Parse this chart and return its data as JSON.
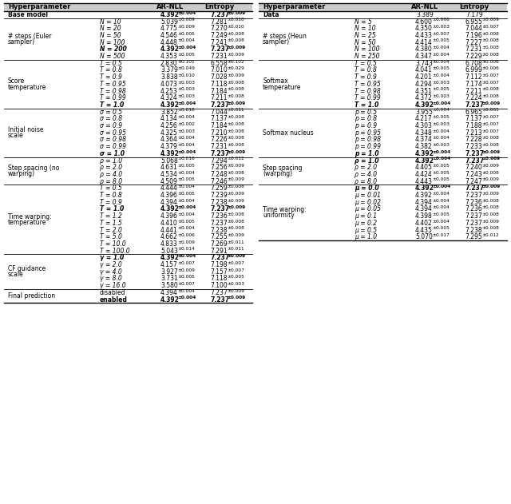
{
  "fig_width": 6.4,
  "fig_height": 6.31,
  "bg_color": "#ffffff",
  "header_bg": "#cccccc",
  "line_color": "#000000",
  "text_color": "#000000",
  "left_sections": [
    {
      "label": [
        "Base model"
      ],
      "label_bold": true,
      "rows": [
        {
          "param": "",
          "param_style": "normal",
          "ar": "4.392",
          "ar_err": "0.004",
          "ent": "7.237",
          "ent_err": "0.009",
          "bold": true
        }
      ]
    },
    {
      "label": [
        "# steps (Euler",
        "sampler)"
      ],
      "label_bold": false,
      "rows": [
        {
          "param": "N = 10",
          "param_style": "italic",
          "ar": "5.039",
          "ar_err": "0.009",
          "ent": "7.281",
          "ent_err": "0.010",
          "bold": false
        },
        {
          "param": "N = 20",
          "param_style": "italic",
          "ar": "4.775",
          "ar_err": "0.009",
          "ent": "7.270",
          "ent_err": "0.010",
          "bold": false
        },
        {
          "param": "N = 50",
          "param_style": "italic",
          "ar": "4.546",
          "ar_err": "0.005",
          "ent": "7.249",
          "ent_err": "0.008",
          "bold": false
        },
        {
          "param": "N = 100",
          "param_style": "italic",
          "ar": "4.448",
          "ar_err": "0.004",
          "ent": "7.241",
          "ent_err": "0.008",
          "bold": false
        },
        {
          "param": "N = 200",
          "param_style": "italic",
          "ar": "4.392",
          "ar_err": "0.004",
          "ent": "7.237",
          "ent_err": "0.009",
          "bold": true
        },
        {
          "param": "N = 500",
          "param_style": "italic",
          "ar": "4.353",
          "ar_err": "0.005",
          "ent": "7.231",
          "ent_err": "0.009",
          "bold": false
        }
      ]
    },
    {
      "label": [
        "Score",
        "temperature"
      ],
      "label_bold": false,
      "rows": [
        {
          "param": "T = 0.5",
          "param_style": "italic",
          "ar": "2.830",
          "ar_err": "0.101",
          "ent": "6.558",
          "ent_err": "0.102",
          "bold": false
        },
        {
          "param": "T = 0.8",
          "param_style": "italic",
          "ar": "3.379",
          "ar_err": "0.049",
          "ent": "7.010",
          "ent_err": "0.029",
          "bold": false
        },
        {
          "param": "T = 0.9",
          "param_style": "italic",
          "ar": "3.838",
          "ar_err": "0.010",
          "ent": "7.028",
          "ent_err": "0.009",
          "bold": false
        },
        {
          "param": "T = 0.95",
          "param_style": "italic",
          "ar": "4.073",
          "ar_err": "0.003",
          "ent": "7.118",
          "ent_err": "0.008",
          "bold": false
        },
        {
          "param": "T = 0.98",
          "param_style": "italic",
          "ar": "4.253",
          "ar_err": "0.003",
          "ent": "7.184",
          "ent_err": "0.008",
          "bold": false
        },
        {
          "param": "T = 0.99",
          "param_style": "italic",
          "ar": "4.324",
          "ar_err": "0.003",
          "ent": "7.211",
          "ent_err": "0.008",
          "bold": false
        },
        {
          "param": "T = 1.0",
          "param_style": "italic",
          "ar": "4.392",
          "ar_err": "0.004",
          "ent": "7.237",
          "ent_err": "0.009",
          "bold": true
        }
      ]
    },
    {
      "label": [
        "Initial noise",
        "scale"
      ],
      "label_bold": false,
      "rows": [
        {
          "param": "σ = 0.5",
          "param_style": "italic",
          "ar": "3.852",
          "ar_err": "0.018",
          "ent": "7.044",
          "ent_err": "0.011",
          "bold": false
        },
        {
          "param": "σ = 0.8",
          "param_style": "italic",
          "ar": "4.134",
          "ar_err": "0.004",
          "ent": "7.137",
          "ent_err": "0.008",
          "bold": false
        },
        {
          "param": "σ = 0.9",
          "param_style": "italic",
          "ar": "4.256",
          "ar_err": "0.002",
          "ent": "7.184",
          "ent_err": "0.008",
          "bold": false
        },
        {
          "param": "σ = 0.95",
          "param_style": "italic",
          "ar": "4.325",
          "ar_err": "0.003",
          "ent": "7.210",
          "ent_err": "0.008",
          "bold": false
        },
        {
          "param": "σ = 0.98",
          "param_style": "italic",
          "ar": "4.364",
          "ar_err": "0.004",
          "ent": "7.226",
          "ent_err": "0.008",
          "bold": false
        },
        {
          "param": "σ = 0.99",
          "param_style": "italic",
          "ar": "4.379",
          "ar_err": "0.004",
          "ent": "7.231",
          "ent_err": "0.008",
          "bold": false
        },
        {
          "param": "σ = 1.0",
          "param_style": "italic",
          "ar": "4.392",
          "ar_err": "0.004",
          "ent": "7.237",
          "ent_err": "0.009",
          "bold": true
        }
      ]
    },
    {
      "label": [
        "Step spacing (no",
        "warping)"
      ],
      "label_bold": false,
      "rows": [
        {
          "param": "ρ = 1.0",
          "param_style": "italic",
          "ar": "5.068",
          "ar_err": "0.016",
          "ent": "7.294",
          "ent_err": "0.012",
          "bold": false
        },
        {
          "param": "ρ = 2.0",
          "param_style": "italic",
          "ar": "4.631",
          "ar_err": "0.005",
          "ent": "7.256",
          "ent_err": "0.009",
          "bold": false
        },
        {
          "param": "ρ = 4.0",
          "param_style": "italic",
          "ar": "4.534",
          "ar_err": "0.004",
          "ent": "7.248",
          "ent_err": "0.008",
          "bold": false
        },
        {
          "param": "ρ = 8.0",
          "param_style": "italic",
          "ar": "4.509",
          "ar_err": "0.005",
          "ent": "7.246",
          "ent_err": "0.009",
          "bold": false
        }
      ]
    },
    {
      "label": [
        "Time warping:",
        "temperature"
      ],
      "label_bold": false,
      "rows": [
        {
          "param": "T = 0.5",
          "param_style": "italic",
          "ar": "4.444",
          "ar_err": "0.004",
          "ent": "7.259",
          "ent_err": "0.008",
          "bold": false
        },
        {
          "param": "T = 0.8",
          "param_style": "italic",
          "ar": "4.396",
          "ar_err": "0.005",
          "ent": "7.239",
          "ent_err": "0.009",
          "bold": false
        },
        {
          "param": "T = 0.9",
          "param_style": "italic",
          "ar": "4.394",
          "ar_err": "0.004",
          "ent": "7.238",
          "ent_err": "0.009",
          "bold": false
        },
        {
          "param": "T = 1.0",
          "param_style": "italic",
          "ar": "4.392",
          "ar_err": "0.004",
          "ent": "7.237",
          "ent_err": "0.009",
          "bold": true
        },
        {
          "param": "T = 1.2",
          "param_style": "italic",
          "ar": "4.396",
          "ar_err": "0.004",
          "ent": "7.236",
          "ent_err": "0.008",
          "bold": false
        },
        {
          "param": "T = 1.5",
          "param_style": "italic",
          "ar": "4.410",
          "ar_err": "0.005",
          "ent": "7.237",
          "ent_err": "0.008",
          "bold": false
        },
        {
          "param": "T = 2.0",
          "param_style": "italic",
          "ar": "4.441",
          "ar_err": "0.004",
          "ent": "7.238",
          "ent_err": "0.008",
          "bold": false
        },
        {
          "param": "T = 5.0",
          "param_style": "italic",
          "ar": "4.662",
          "ar_err": "0.006",
          "ent": "7.255",
          "ent_err": "0.009",
          "bold": false
        },
        {
          "param": "T = 10.0",
          "param_style": "italic",
          "ar": "4.833",
          "ar_err": "0.009",
          "ent": "7.269",
          "ent_err": "0.011",
          "bold": false
        },
        {
          "param": "T = 100.0",
          "param_style": "italic",
          "ar": "5.043",
          "ar_err": "0.014",
          "ent": "7.291",
          "ent_err": "0.011",
          "bold": false
        }
      ]
    },
    {
      "label": [
        "CF guidance",
        "scale"
      ],
      "label_bold": false,
      "rows": [
        {
          "param": "γ = 1.0",
          "param_style": "italic",
          "ar": "4.392",
          "ar_err": "0.004",
          "ent": "7.237",
          "ent_err": "0.009",
          "bold": true
        },
        {
          "param": "γ = 2.0",
          "param_style": "italic",
          "ar": "4.157",
          "ar_err": "0.007",
          "ent": "7.198",
          "ent_err": "0.007",
          "bold": false
        },
        {
          "param": "γ = 4.0",
          "param_style": "italic",
          "ar": "3.927",
          "ar_err": "0.009",
          "ent": "7.157",
          "ent_err": "0.007",
          "bold": false
        },
        {
          "param": "γ = 8.0",
          "param_style": "italic",
          "ar": "3.731",
          "ar_err": "0.005",
          "ent": "7.118",
          "ent_err": "0.005",
          "bold": false
        },
        {
          "param": "γ = 16.0",
          "param_style": "italic",
          "ar": "3.580",
          "ar_err": "0.007",
          "ent": "7.100",
          "ent_err": "0.003",
          "bold": false
        }
      ]
    },
    {
      "label": [
        "Final prediction"
      ],
      "label_bold": false,
      "rows": [
        {
          "param": "disabled",
          "param_style": "normal",
          "ar": "4.394",
          "ar_err": "0.004",
          "ent": "7.237",
          "ent_err": "0.009",
          "bold": false
        },
        {
          "param": "enabled",
          "param_style": "normal",
          "ar": "4.392",
          "ar_err": "0.004",
          "ent": "7.237",
          "ent_err": "0.009",
          "bold": true
        }
      ]
    }
  ],
  "right_sections": [
    {
      "label": [
        "Data"
      ],
      "label_bold": false,
      "rows": [
        {
          "param": "",
          "param_style": "normal",
          "ar": "3.389",
          "ar_err": "",
          "ent": "7.179",
          "ent_err": "",
          "bold": false
        }
      ]
    },
    {
      "label": [
        "# steps (Heun",
        "sampler)"
      ],
      "label_bold": false,
      "rows": [
        {
          "param": "N = 5",
          "param_style": "italic",
          "ar": "4.600",
          "ar_err": "0.006",
          "ent": "6.955",
          "ent_err": "0.009",
          "bold": false
        },
        {
          "param": "N = 10",
          "param_style": "italic",
          "ar": "4.350",
          "ar_err": "0.003",
          "ent": "7.044",
          "ent_err": "0.007",
          "bold": false
        },
        {
          "param": "N = 25",
          "param_style": "italic",
          "ar": "4.433",
          "ar_err": "0.007",
          "ent": "7.196",
          "ent_err": "0.008",
          "bold": false
        },
        {
          "param": "N = 50",
          "param_style": "italic",
          "ar": "4.414",
          "ar_err": "0.005",
          "ent": "7.227",
          "ent_err": "0.008",
          "bold": false
        },
        {
          "param": "N = 100",
          "param_style": "italic",
          "ar": "4.380",
          "ar_err": "0.004",
          "ent": "7.231",
          "ent_err": "0.008",
          "bold": false
        },
        {
          "param": "N = 250",
          "param_style": "italic",
          "ar": "4.347",
          "ar_err": "0.004",
          "ent": "7.229",
          "ent_err": "0.008",
          "bold": false
        }
      ]
    },
    {
      "label": [
        "Softmax",
        "temperature"
      ],
      "label_bold": false,
      "rows": [
        {
          "param": "T = 0.5",
          "param_style": "italic",
          "ar": "3.743",
          "ar_err": "0.004",
          "ent": "6.708",
          "ent_err": "0.006",
          "bold": false
        },
        {
          "param": "T = 0.8",
          "param_style": "italic",
          "ar": "4.041",
          "ar_err": "0.005",
          "ent": "6.999",
          "ent_err": "0.006",
          "bold": false
        },
        {
          "param": "T = 0.9",
          "param_style": "italic",
          "ar": "4.201",
          "ar_err": "0.004",
          "ent": "7.112",
          "ent_err": "0.007",
          "bold": false
        },
        {
          "param": "T = 0.95",
          "param_style": "italic",
          "ar": "4.294",
          "ar_err": "0.003",
          "ent": "7.174",
          "ent_err": "0.007",
          "bold": false
        },
        {
          "param": "T = 0.98",
          "param_style": "italic",
          "ar": "4.351",
          "ar_err": "0.005",
          "ent": "7.211",
          "ent_err": "0.008",
          "bold": false
        },
        {
          "param": "T = 0.99",
          "param_style": "italic",
          "ar": "4.372",
          "ar_err": "0.003",
          "ent": "7.224",
          "ent_err": "0.008",
          "bold": false
        },
        {
          "param": "T = 1.0",
          "param_style": "italic",
          "ar": "4.392",
          "ar_err": "0.004",
          "ent": "7.237",
          "ent_err": "0.009",
          "bold": true
        }
      ]
    },
    {
      "label": [
        "Softmax nucleus"
      ],
      "label_bold": false,
      "rows": [
        {
          "param": "p = 0.5",
          "param_style": "italic",
          "ar": "3.955",
          "ar_err": "0.004",
          "ent": "6.965",
          "ent_err": "0.005",
          "bold": false
        },
        {
          "param": "p = 0.8",
          "param_style": "italic",
          "ar": "4.217",
          "ar_err": "0.005",
          "ent": "7.137",
          "ent_err": "0.007",
          "bold": false
        },
        {
          "param": "p = 0.9",
          "param_style": "italic",
          "ar": "4.303",
          "ar_err": "0.003",
          "ent": "7.188",
          "ent_err": "0.007",
          "bold": false
        },
        {
          "param": "p = 0.95",
          "param_style": "italic",
          "ar": "4.348",
          "ar_err": "0.004",
          "ent": "7.213",
          "ent_err": "0.007",
          "bold": false
        },
        {
          "param": "p = 0.98",
          "param_style": "italic",
          "ar": "4.374",
          "ar_err": "0.004",
          "ent": "7.228",
          "ent_err": "0.008",
          "bold": false
        },
        {
          "param": "p = 0.99",
          "param_style": "italic",
          "ar": "4.382",
          "ar_err": "0.003",
          "ent": "7.233",
          "ent_err": "0.008",
          "bold": false
        },
        {
          "param": "p = 1.0",
          "param_style": "italic",
          "ar": "4.392",
          "ar_err": "0.004",
          "ent": "7.237",
          "ent_err": "0.009",
          "bold": true
        }
      ]
    },
    {
      "label": [
        "Step spacing",
        "(warping)"
      ],
      "label_bold": false,
      "rows": [
        {
          "param": "ρ = 1.0",
          "param_style": "italic",
          "ar": "4.392",
          "ar_err": "0.004",
          "ent": "7.237",
          "ent_err": "0.009",
          "bold": true
        },
        {
          "param": "ρ = 2.0",
          "param_style": "italic",
          "ar": "4.405",
          "ar_err": "0.005",
          "ent": "7.240",
          "ent_err": "0.009",
          "bold": false
        },
        {
          "param": "ρ = 4.0",
          "param_style": "italic",
          "ar": "4.424",
          "ar_err": "0.005",
          "ent": "7.243",
          "ent_err": "0.008",
          "bold": false
        },
        {
          "param": "ρ = 8.0",
          "param_style": "italic",
          "ar": "4.443",
          "ar_err": "0.005",
          "ent": "7.247",
          "ent_err": "0.009",
          "bold": false
        }
      ]
    },
    {
      "label": [
        "Time warping:",
        "uniformity"
      ],
      "label_bold": false,
      "rows": [
        {
          "param": "μ = 0.0",
          "param_style": "italic",
          "ar": "4.392",
          "ar_err": "0.004",
          "ent": "7.237",
          "ent_err": "0.009",
          "bold": true
        },
        {
          "param": "μ = 0.01",
          "param_style": "italic",
          "ar": "4.392",
          "ar_err": "0.004",
          "ent": "7.237",
          "ent_err": "0.009",
          "bold": false
        },
        {
          "param": "μ = 0.02",
          "param_style": "italic",
          "ar": "4.394",
          "ar_err": "0.004",
          "ent": "7.236",
          "ent_err": "0.008",
          "bold": false
        },
        {
          "param": "μ = 0.05",
          "param_style": "italic",
          "ar": "4.394",
          "ar_err": "0.004",
          "ent": "7.236",
          "ent_err": "0.008",
          "bold": false
        },
        {
          "param": "μ = 0.1",
          "param_style": "italic",
          "ar": "4.398",
          "ar_err": "0.005",
          "ent": "7.237",
          "ent_err": "0.008",
          "bold": false
        },
        {
          "param": "μ = 0.2",
          "param_style": "italic",
          "ar": "4.402",
          "ar_err": "0.004",
          "ent": "7.237",
          "ent_err": "0.009",
          "bold": false
        },
        {
          "param": "μ = 0.5",
          "param_style": "italic",
          "ar": "4.435",
          "ar_err": "0.005",
          "ent": "7.238",
          "ent_err": "0.008",
          "bold": false
        },
        {
          "param": "μ = 1.0",
          "param_style": "italic",
          "ar": "5.070",
          "ar_err": "0.017",
          "ent": "7.295",
          "ent_err": "0.012",
          "bold": false
        }
      ]
    }
  ]
}
